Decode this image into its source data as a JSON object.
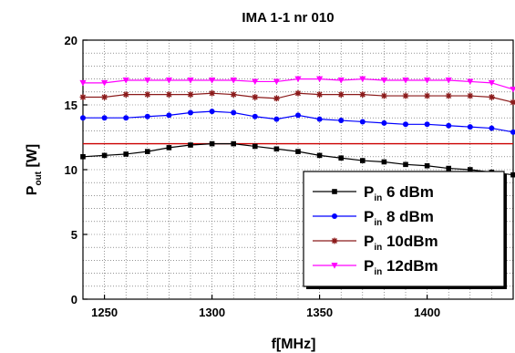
{
  "chart_data": {
    "type": "line",
    "title": "IMA 1-1 nr 010",
    "xlabel": "f[MHz]",
    "ylabel": {
      "main": "P",
      "sub": "out",
      "suffix": " [W]"
    },
    "xlim": [
      1240,
      1440
    ],
    "ylim": [
      0,
      20
    ],
    "xticks": [
      1250,
      1300,
      1350,
      1400
    ],
    "yticks": [
      0,
      5,
      10,
      15,
      20
    ],
    "grid": true,
    "legend_position": "bottom-right",
    "x": [
      1240,
      1250,
      1260,
      1270,
      1280,
      1290,
      1300,
      1310,
      1320,
      1330,
      1340,
      1350,
      1360,
      1370,
      1380,
      1390,
      1400,
      1410,
      1420,
      1430,
      1440
    ],
    "reference_line": {
      "value": 12,
      "color": "#cc0000"
    },
    "series": [
      {
        "legend": {
          "main": "P",
          "sub": "in",
          "suffix": " 6  dBm"
        },
        "color": "#000000",
        "marker": "square",
        "values": [
          11.0,
          11.1,
          11.2,
          11.4,
          11.7,
          11.9,
          12.0,
          12.0,
          11.8,
          11.6,
          11.4,
          11.1,
          10.9,
          10.7,
          10.6,
          10.4,
          10.3,
          10.1,
          10.0,
          9.8,
          9.6
        ]
      },
      {
        "legend": {
          "main": "P",
          "sub": "in",
          "suffix": " 8  dBm"
        },
        "color": "#0000ff",
        "marker": "circle",
        "values": [
          14.0,
          14.0,
          14.0,
          14.1,
          14.2,
          14.4,
          14.5,
          14.4,
          14.1,
          13.9,
          14.2,
          13.9,
          13.8,
          13.7,
          13.6,
          13.5,
          13.5,
          13.4,
          13.3,
          13.2,
          12.9
        ]
      },
      {
        "legend": {
          "main": "P",
          "sub": "in",
          "suffix": " 10dBm"
        },
        "color": "#8b1a1a",
        "marker": "star",
        "values": [
          15.6,
          15.6,
          15.8,
          15.8,
          15.8,
          15.8,
          15.9,
          15.8,
          15.6,
          15.5,
          15.9,
          15.8,
          15.8,
          15.8,
          15.7,
          15.7,
          15.7,
          15.7,
          15.7,
          15.6,
          15.2
        ]
      },
      {
        "legend": {
          "main": "P",
          "sub": "in",
          "suffix": " 12dBm"
        },
        "color": "#ff00ff",
        "marker": "triangle-down",
        "values": [
          16.7,
          16.7,
          16.9,
          16.9,
          16.9,
          16.9,
          16.9,
          16.9,
          16.8,
          16.8,
          17.0,
          17.0,
          16.9,
          17.0,
          16.9,
          16.9,
          16.9,
          16.9,
          16.8,
          16.7,
          16.2
        ]
      }
    ]
  }
}
